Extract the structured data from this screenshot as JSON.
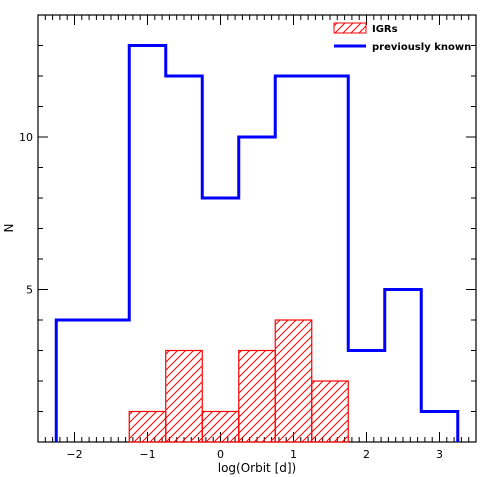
{
  "chart_data": {
    "type": "histogram",
    "xlabel": "log(Orbit [d])",
    "ylabel": "N",
    "xlim": [
      -2.5,
      3.5
    ],
    "ylim": [
      0,
      14
    ],
    "x_ticks": [
      -2,
      -1,
      0,
      1,
      2,
      3
    ],
    "x_tick_labels": [
      "−2",
      "−1",
      "0",
      "1",
      "2",
      "3"
    ],
    "y_ticks": [
      5,
      10
    ],
    "y_tick_labels": [
      "5",
      "10"
    ],
    "series": [
      {
        "name": "IGRs",
        "style": "hatched",
        "color": "#ff0000",
        "bin_edges": [
          -1.25,
          -0.75,
          -0.25,
          0.25,
          0.75,
          1.25,
          1.75
        ],
        "counts": [
          1,
          3,
          1,
          3,
          4,
          2
        ]
      },
      {
        "name": "previously known",
        "style": "line",
        "color": "#0000ff",
        "bin_edges": [
          -2.25,
          -1.25,
          -0.75,
          -0.25,
          0.25,
          0.75,
          1.25,
          1.75,
          2.25,
          2.75,
          3.25
        ],
        "counts": [
          4,
          13,
          12,
          8,
          10,
          12,
          12,
          3,
          5,
          1
        ]
      }
    ],
    "legend_position": "top-right"
  }
}
